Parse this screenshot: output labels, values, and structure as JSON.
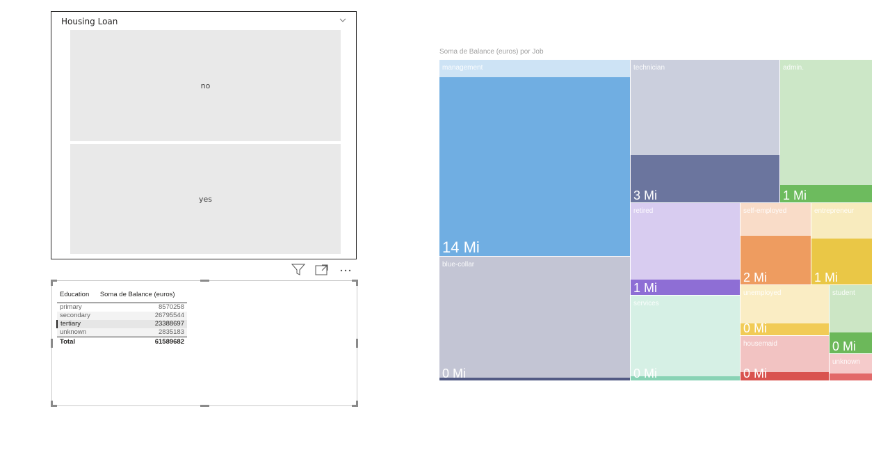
{
  "slicer": {
    "title": "Housing Loan",
    "options": [
      "no",
      "yes"
    ]
  },
  "table": {
    "headers": [
      "Education",
      "Soma de Balance (euros)"
    ],
    "rows": [
      {
        "education": "primary",
        "balance": "8570258"
      },
      {
        "education": "secondary",
        "balance": "26795544"
      },
      {
        "education": "tertiary",
        "balance": "23388697"
      },
      {
        "education": "unknown",
        "balance": "2835183"
      }
    ],
    "total_label": "Total",
    "total_value": "61589682"
  },
  "treemap": {
    "title": "Soma de Balance (euros) por Job"
  },
  "chart_data": {
    "type": "treemap",
    "title": "Soma de Balance (euros) por Job",
    "value_unit": "Mi",
    "nodes": [
      {
        "label": "management",
        "value_label": "14 Mi",
        "color": "#70aee2",
        "highlight_fraction": 0.91
      },
      {
        "label": "technician",
        "value_label": "3 Mi",
        "color": "#6b759e",
        "highlight_fraction": 0.33
      },
      {
        "label": "admin.",
        "value_label": "1 Mi",
        "color": "#6dbb5e",
        "highlight_fraction": 0.12
      },
      {
        "label": "blue-collar",
        "value_label": "0 Mi",
        "color": "#525a84",
        "highlight_fraction": 0.02
      },
      {
        "label": "retired",
        "value_label": "1 Mi",
        "color": "#8e6ed5",
        "highlight_fraction": 0.17
      },
      {
        "label": "self-employed",
        "value_label": "2 Mi",
        "color": "#ee9c60",
        "highlight_fraction": 0.6
      },
      {
        "label": "entrepreneur",
        "value_label": "1 Mi",
        "color": "#eac746",
        "highlight_fraction": 0.56
      },
      {
        "label": "services",
        "value_label": "0 Mi",
        "color": "#89d3b5",
        "highlight_fraction": 0.05
      },
      {
        "label": "unemployed",
        "value_label": "0 Mi",
        "color": "#f1cb56",
        "highlight_fraction": 0.24
      },
      {
        "label": "student",
        "value_label": "0 Mi",
        "color": "#6cb85a",
        "highlight_fraction": 0.31
      },
      {
        "label": "housemaid",
        "value_label": "0 Mi",
        "color": "#d9534f",
        "highlight_fraction": 0.18
      },
      {
        "label": "unknown",
        "value_label": "",
        "color": "#e26a6a",
        "highlight_fraction": 0.25
      }
    ]
  }
}
